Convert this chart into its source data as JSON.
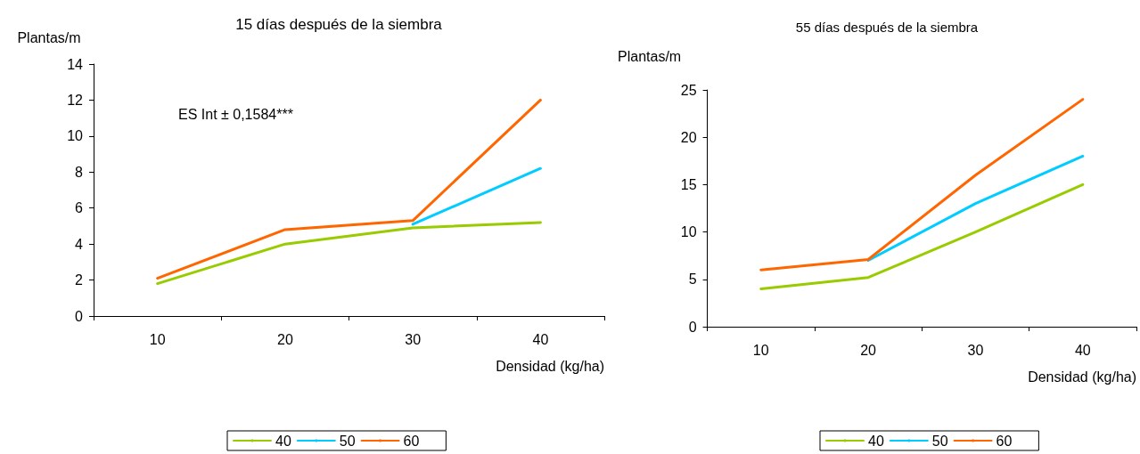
{
  "chart_data": [
    {
      "type": "line",
      "title": "15 días después de la siembra",
      "xlabel": "Densidad (kg/ha)",
      "ylabel": "Plantas/m",
      "categories": [
        "10",
        "20",
        "30",
        "40"
      ],
      "ylim": [
        0,
        14
      ],
      "yticks": [
        0,
        2,
        4,
        6,
        8,
        10,
        12,
        14
      ],
      "grid": false,
      "legend": "bottom",
      "marker": "none",
      "line_style": "solid",
      "annotations": [
        "ES Int ± 0,1584***"
      ],
      "series": [
        {
          "name": "40",
          "color": "#99cc00",
          "values": [
            1.8,
            4.0,
            4.9,
            5.2
          ]
        },
        {
          "name": "50",
          "color": "#00ccff",
          "values": [
            null,
            null,
            5.1,
            8.2
          ]
        },
        {
          "name": "60",
          "color": "#ff6600",
          "values": [
            2.1,
            4.8,
            5.3,
            12.0
          ]
        }
      ]
    },
    {
      "type": "line",
      "title": "55 días después de la siembra",
      "xlabel": "Densidad (kg/ha)",
      "ylabel": "Plantas/m",
      "categories": [
        "10",
        "20",
        "30",
        "40"
      ],
      "ylim": [
        0,
        25
      ],
      "yticks": [
        0,
        5,
        10,
        15,
        20,
        25
      ],
      "grid": false,
      "legend": "bottom",
      "marker": "none",
      "line_style": "solid",
      "series": [
        {
          "name": "40",
          "color": "#99cc00",
          "values": [
            4,
            5.2,
            10,
            15
          ]
        },
        {
          "name": "50",
          "color": "#00ccff",
          "values": [
            null,
            7,
            13,
            18
          ]
        },
        {
          "name": "60",
          "color": "#ff6600",
          "values": [
            6,
            7.1,
            16,
            24
          ]
        }
      ]
    }
  ]
}
